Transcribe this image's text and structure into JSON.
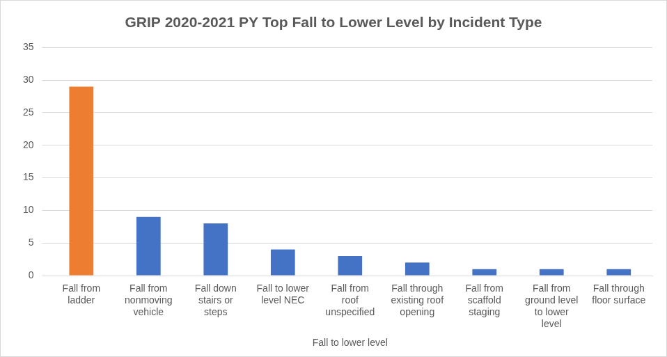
{
  "chart_data": {
    "type": "bar",
    "title": "GRIP 2020-2021 PY Top Fall to Lower Level by Incident Type",
    "xlabel": "Fall to lower level",
    "categories": [
      "Fall from ladder",
      "Fall from nonmoving vehicle",
      "Fall down stairs or steps",
      "Fall to lower level NEC",
      "Fall from roof unspecified",
      "Fall through existing roof opening",
      "Fall from scaffold staging",
      "Fall from ground level to lower level",
      "Fall through floor surface"
    ],
    "values": [
      29,
      9,
      8,
      4,
      3,
      2,
      1,
      1,
      1
    ],
    "colors": [
      "#ed7d31",
      "#4472c4",
      "#4472c4",
      "#4472c4",
      "#4472c4",
      "#4472c4",
      "#4472c4",
      "#4472c4",
      "#4472c4"
    ],
    "ylim": [
      0,
      35
    ],
    "yticks": [
      0,
      5,
      10,
      15,
      20,
      25,
      30,
      35
    ],
    "grid": true
  }
}
